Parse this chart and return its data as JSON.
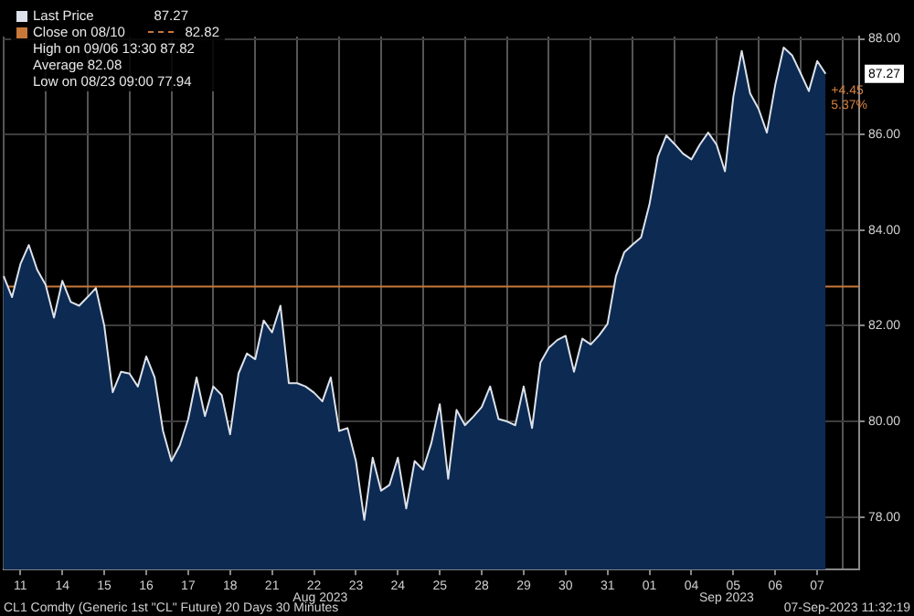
{
  "chart_data": {
    "type": "area",
    "title": "CL1 Comdty (Generic 1st \"CL\" Future) 20 Days 30 Minutes",
    "subtitle": "07-Sep-2023 11:32:19",
    "categories": [
      null,
      null,
      "11",
      null,
      null,
      null,
      null,
      "14",
      null,
      null,
      null,
      null,
      "15",
      null,
      null,
      null,
      null,
      "16",
      null,
      null,
      null,
      null,
      "17",
      null,
      null,
      null,
      null,
      "18",
      null,
      null,
      null,
      null,
      "21",
      null,
      null,
      null,
      null,
      "22",
      null,
      null,
      null,
      null,
      "23",
      null,
      null,
      null,
      null,
      "24",
      null,
      null,
      null,
      null,
      "25",
      null,
      null,
      null,
      null,
      "28",
      null,
      null,
      null,
      null,
      "29",
      null,
      null,
      null,
      null,
      "30",
      null,
      null,
      null,
      null,
      "31",
      null,
      null,
      null,
      null,
      "01",
      null,
      null,
      null,
      null,
      "04",
      null,
      null,
      null,
      null,
      "05",
      null,
      null,
      null,
      null,
      "06",
      null,
      null,
      null,
      null,
      "07",
      null,
      null,
      null,
      null,
      null
    ],
    "ylim": [
      76.9,
      88.05
    ],
    "yticks": [
      {
        "value": 78,
        "label": "78.00"
      },
      {
        "value": 80,
        "label": "80.00"
      },
      {
        "value": 82,
        "label": "82.00"
      },
      {
        "value": 84,
        "label": "84.00"
      },
      {
        "value": 86,
        "label": "86.00"
      },
      {
        "value": 88,
        "label": "88.00"
      }
    ],
    "series": [
      {
        "name": "Last Price",
        "color": "#dde2ea",
        "values": [
          83.04,
          82.6,
          83.29,
          83.69,
          83.17,
          82.86,
          82.17,
          82.94,
          82.5,
          82.42,
          82.6,
          82.79,
          82.0,
          80.61,
          81.04,
          81.0,
          80.73,
          81.36,
          80.92,
          79.8,
          79.17,
          79.5,
          80.05,
          80.92,
          80.11,
          80.73,
          80.55,
          79.73,
          81.0,
          81.42,
          81.3,
          82.11,
          81.86,
          82.42,
          80.8,
          80.8,
          80.73,
          80.6,
          80.42,
          80.92,
          79.8,
          79.86,
          79.17,
          77.94,
          79.24,
          78.55,
          78.67,
          79.24,
          78.18,
          79.17,
          78.99,
          79.55,
          80.36,
          78.8,
          80.24,
          79.92,
          80.1,
          80.3,
          80.73,
          80.05,
          80.0,
          79.92,
          80.73,
          79.86,
          81.23,
          81.54,
          81.7,
          81.79,
          81.04,
          81.73,
          81.61,
          81.8,
          82.04,
          83.04,
          83.54,
          83.7,
          83.85,
          84.54,
          85.54,
          85.98,
          85.8,
          85.6,
          85.48,
          85.79,
          86.04,
          85.79,
          85.23,
          86.79,
          87.75,
          86.86,
          86.54,
          86.04,
          87.04,
          87.82,
          87.66,
          87.29,
          86.91,
          87.54,
          87.27,
          null,
          null,
          null,
          null
        ]
      }
    ],
    "ref_lines": [
      {
        "axis": "y",
        "value": 82.82,
        "label": "Close on 08/10",
        "color": "#c8783a"
      }
    ],
    "annotations": [
      "82.82",
      "High on 09/06 13:30 87.82",
      "Average 82.08",
      "Low on 08/23 09:00 77.94",
      "Aug 2023",
      "Sep 2023",
      "87.27",
      "+4.45",
      "5.37%"
    ],
    "grid": true,
    "legend": "top left"
  }
}
